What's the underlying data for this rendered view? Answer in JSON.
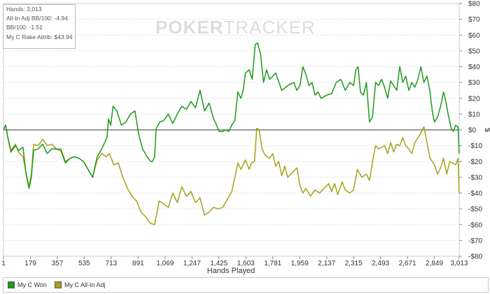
{
  "stats": {
    "hands": "Hands: 3,013",
    "allin_adj": "All-In Adj BB/100: -4.94",
    "bb100": "BB/100: -1.51",
    "rake": "My C Rake Attrib: $43.94"
  },
  "watermark": {
    "part1": "POKER",
    "part2": "TRACKER"
  },
  "legend": [
    {
      "label": "My C Won",
      "color": "#1c9a1c"
    },
    {
      "label": "My C All-In Adj",
      "color": "#a8a018"
    }
  ],
  "chart_data": {
    "type": "line",
    "xlabel": "Hands Played",
    "ylabel": "$",
    "xlim": [
      1,
      3013
    ],
    "ylim": [
      -80,
      80
    ],
    "x_ticks": [
      "1",
      "179",
      "357",
      "535",
      "713",
      "891",
      "1,069",
      "1,247",
      "1,425",
      "1,603",
      "1,781",
      "1,959",
      "2,137",
      "2,315",
      "2,493",
      "2,671",
      "2,849",
      "3,013"
    ],
    "y_ticks": [
      "$80",
      "$70",
      "$60",
      "$50",
      "$40",
      "$30",
      "$20",
      "$10",
      "$0",
      "-$10",
      "-$20",
      "-$30",
      "-$40",
      "-$50",
      "-$60",
      "-$70",
      "-$80"
    ],
    "grid": "horizontal dotted",
    "legend_position": "bottom",
    "series": [
      {
        "name": "My C Won",
        "color": "#1c9a1c",
        "points": [
          [
            1,
            0
          ],
          [
            15,
            3
          ],
          [
            30,
            -5
          ],
          [
            50,
            -14
          ],
          [
            80,
            -10
          ],
          [
            100,
            -13
          ],
          [
            130,
            -11
          ],
          [
            150,
            -28
          ],
          [
            170,
            -37
          ],
          [
            185,
            -30
          ],
          [
            200,
            -13
          ],
          [
            230,
            -12
          ],
          [
            260,
            -9
          ],
          [
            290,
            -15
          ],
          [
            320,
            -12
          ],
          [
            350,
            -12
          ],
          [
            380,
            -13
          ],
          [
            410,
            -21
          ],
          [
            440,
            -18
          ],
          [
            470,
            -17
          ],
          [
            500,
            -18
          ],
          [
            530,
            -20
          ],
          [
            560,
            -25
          ],
          [
            590,
            -30
          ],
          [
            620,
            -17
          ],
          [
            650,
            -12
          ],
          [
            670,
            -8
          ],
          [
            685,
            -5
          ],
          [
            695,
            7
          ],
          [
            710,
            3
          ],
          [
            725,
            15
          ],
          [
            750,
            12
          ],
          [
            780,
            3
          ],
          [
            810,
            5
          ],
          [
            840,
            10
          ],
          [
            870,
            12
          ],
          [
            895,
            -3
          ],
          [
            920,
            -12
          ],
          [
            950,
            -17
          ],
          [
            975,
            -20
          ],
          [
            985,
            -20
          ],
          [
            1000,
            -17
          ],
          [
            1010,
            1
          ],
          [
            1035,
            5
          ],
          [
            1060,
            6
          ],
          [
            1090,
            10
          ],
          [
            1120,
            4
          ],
          [
            1150,
            10
          ],
          [
            1180,
            15
          ],
          [
            1210,
            13
          ],
          [
            1240,
            18
          ],
          [
            1270,
            14
          ],
          [
            1300,
            25
          ],
          [
            1330,
            12
          ],
          [
            1360,
            17
          ],
          [
            1390,
            7
          ],
          [
            1410,
            3
          ],
          [
            1425,
            -1
          ],
          [
            1450,
            -1
          ],
          [
            1470,
            0
          ],
          [
            1490,
            -1
          ],
          [
            1510,
            3
          ],
          [
            1530,
            6
          ],
          [
            1550,
            24
          ],
          [
            1570,
            20
          ],
          [
            1585,
            25
          ],
          [
            1600,
            36
          ],
          [
            1625,
            38
          ],
          [
            1645,
            32
          ],
          [
            1665,
            54
          ],
          [
            1680,
            55
          ],
          [
            1700,
            48
          ],
          [
            1720,
            30
          ],
          [
            1740,
            38
          ],
          [
            1760,
            32
          ],
          [
            1800,
            36
          ],
          [
            1840,
            25
          ],
          [
            1880,
            28
          ],
          [
            1920,
            30
          ],
          [
            1940,
            25
          ],
          [
            1960,
            28
          ],
          [
            1980,
            40
          ],
          [
            2000,
            35
          ],
          [
            2020,
            28
          ],
          [
            2040,
            30
          ],
          [
            2060,
            22
          ],
          [
            2080,
            24
          ],
          [
            2100,
            20
          ],
          [
            2137,
            22
          ],
          [
            2170,
            23
          ],
          [
            2200,
            30
          ],
          [
            2230,
            32
          ],
          [
            2260,
            25
          ],
          [
            2290,
            30
          ],
          [
            2315,
            28
          ],
          [
            2330,
            38
          ],
          [
            2345,
            40
          ],
          [
            2360,
            24
          ],
          [
            2380,
            22
          ],
          [
            2400,
            30
          ],
          [
            2420,
            5
          ],
          [
            2440,
            8
          ],
          [
            2460,
            30
          ],
          [
            2480,
            28
          ],
          [
            2500,
            32
          ],
          [
            2520,
            27
          ],
          [
            2540,
            20
          ],
          [
            2560,
            31
          ],
          [
            2580,
            28
          ],
          [
            2600,
            25
          ],
          [
            2620,
            40
          ],
          [
            2640,
            30
          ],
          [
            2660,
            34
          ],
          [
            2680,
            25
          ],
          [
            2700,
            30
          ],
          [
            2720,
            27
          ],
          [
            2740,
            32
          ],
          [
            2760,
            40
          ],
          [
            2780,
            30
          ],
          [
            2800,
            34
          ],
          [
            2820,
            24
          ],
          [
            2835,
            12
          ],
          [
            2849,
            5
          ],
          [
            2870,
            8
          ],
          [
            2890,
            15
          ],
          [
            2910,
            24
          ],
          [
            2925,
            18
          ],
          [
            2940,
            10
          ],
          [
            2960,
            1
          ],
          [
            2975,
            -1
          ],
          [
            2990,
            3
          ],
          [
            3005,
            2
          ],
          [
            3013,
            -15
          ]
        ]
      },
      {
        "name": "My C All-In Adj",
        "color": "#a8a018",
        "points": [
          [
            1,
            0
          ],
          [
            15,
            3
          ],
          [
            30,
            -5
          ],
          [
            50,
            -13
          ],
          [
            80,
            -9
          ],
          [
            100,
            -14
          ],
          [
            130,
            -17
          ],
          [
            150,
            -27
          ],
          [
            170,
            -36
          ],
          [
            185,
            -28
          ],
          [
            200,
            -9
          ],
          [
            230,
            -10
          ],
          [
            260,
            -6
          ],
          [
            290,
            -10
          ],
          [
            320,
            -9
          ],
          [
            350,
            -12
          ],
          [
            380,
            -12
          ],
          [
            410,
            -20
          ],
          [
            440,
            -18
          ],
          [
            470,
            -17
          ],
          [
            500,
            -18
          ],
          [
            530,
            -20
          ],
          [
            560,
            -25
          ],
          [
            590,
            -30
          ],
          [
            620,
            -19
          ],
          [
            650,
            -15
          ],
          [
            680,
            -17
          ],
          [
            700,
            -15
          ],
          [
            730,
            -22
          ],
          [
            760,
            -21
          ],
          [
            790,
            -30
          ],
          [
            820,
            -37
          ],
          [
            850,
            -42
          ],
          [
            880,
            -45
          ],
          [
            910,
            -52
          ],
          [
            940,
            -55
          ],
          [
            970,
            -59
          ],
          [
            1000,
            -60
          ],
          [
            1030,
            -45
          ],
          [
            1060,
            -47
          ],
          [
            1090,
            -49
          ],
          [
            1120,
            -40
          ],
          [
            1150,
            -46
          ],
          [
            1180,
            -36
          ],
          [
            1210,
            -42
          ],
          [
            1240,
            -39
          ],
          [
            1270,
            -46
          ],
          [
            1300,
            -43
          ],
          [
            1330,
            -54
          ],
          [
            1360,
            -52
          ],
          [
            1390,
            -49
          ],
          [
            1420,
            -50
          ],
          [
            1450,
            -49
          ],
          [
            1480,
            -44
          ],
          [
            1510,
            -39
          ],
          [
            1530,
            -30
          ],
          [
            1550,
            -21
          ],
          [
            1570,
            -25
          ],
          [
            1600,
            -19
          ],
          [
            1625,
            -25
          ],
          [
            1640,
            -21
          ],
          [
            1660,
            -20
          ],
          [
            1675,
            1
          ],
          [
            1690,
            0
          ],
          [
            1710,
            -12
          ],
          [
            1730,
            -16
          ],
          [
            1760,
            -18
          ],
          [
            1780,
            -15
          ],
          [
            1800,
            -23
          ],
          [
            1820,
            -20
          ],
          [
            1840,
            -29
          ],
          [
            1860,
            -23
          ],
          [
            1880,
            -30
          ],
          [
            1900,
            -28
          ],
          [
            1920,
            -26
          ],
          [
            1940,
            -24
          ],
          [
            1960,
            -35
          ],
          [
            1980,
            -40
          ],
          [
            2000,
            -37
          ],
          [
            2030,
            -42
          ],
          [
            2060,
            -38
          ],
          [
            2090,
            -40
          ],
          [
            2120,
            -37
          ],
          [
            2150,
            -34
          ],
          [
            2170,
            -39
          ],
          [
            2190,
            -34
          ],
          [
            2210,
            -41
          ],
          [
            2240,
            -33
          ],
          [
            2260,
            -38
          ],
          [
            2290,
            -40
          ],
          [
            2315,
            -38
          ],
          [
            2340,
            -25
          ],
          [
            2370,
            -30
          ],
          [
            2400,
            -28
          ],
          [
            2420,
            -32
          ],
          [
            2440,
            -20
          ],
          [
            2460,
            -10
          ],
          [
            2480,
            -12
          ],
          [
            2500,
            -11
          ],
          [
            2520,
            -10
          ],
          [
            2540,
            -15
          ],
          [
            2560,
            -8
          ],
          [
            2580,
            -14
          ],
          [
            2600,
            -9
          ],
          [
            2620,
            -10
          ],
          [
            2640,
            -5
          ],
          [
            2660,
            -10
          ],
          [
            2680,
            -12
          ],
          [
            2700,
            -15
          ],
          [
            2720,
            -8
          ],
          [
            2740,
            -5
          ],
          [
            2760,
            -2
          ],
          [
            2780,
            2
          ],
          [
            2800,
            -8
          ],
          [
            2820,
            -18
          ],
          [
            2849,
            -22
          ],
          [
            2870,
            -28
          ],
          [
            2890,
            -24
          ],
          [
            2910,
            -18
          ],
          [
            2930,
            -28
          ],
          [
            2950,
            -20
          ],
          [
            2970,
            -21
          ],
          [
            2990,
            -22
          ],
          [
            3005,
            -18
          ],
          [
            3013,
            -40
          ]
        ]
      }
    ]
  }
}
